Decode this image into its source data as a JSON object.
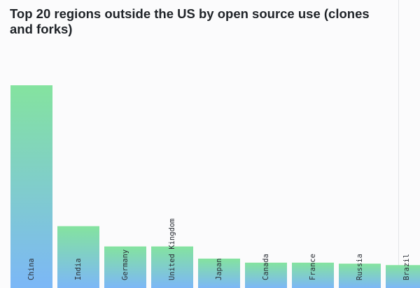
{
  "chart_data": {
    "type": "bar",
    "title": "Top 20 regions outside the US by open source use (clones and forks)",
    "xlabel": "",
    "ylabel": "",
    "categories": [
      "China",
      "India",
      "Germany",
      "United Kingdom",
      "Japan",
      "Canada",
      "France",
      "Russia",
      "Brazil"
    ],
    "values": [
      100,
      30.5,
      20.5,
      20.5,
      14.5,
      12.5,
      12.5,
      12.0,
      11.3
    ],
    "ylim": [
      0,
      100
    ],
    "grid": false,
    "legend": "none",
    "colors": {
      "bar_top": "#84e39f",
      "bar_bottom": "#7cb7f7",
      "divider": "#e3e5e8",
      "background": "#fbfbfc"
    }
  }
}
